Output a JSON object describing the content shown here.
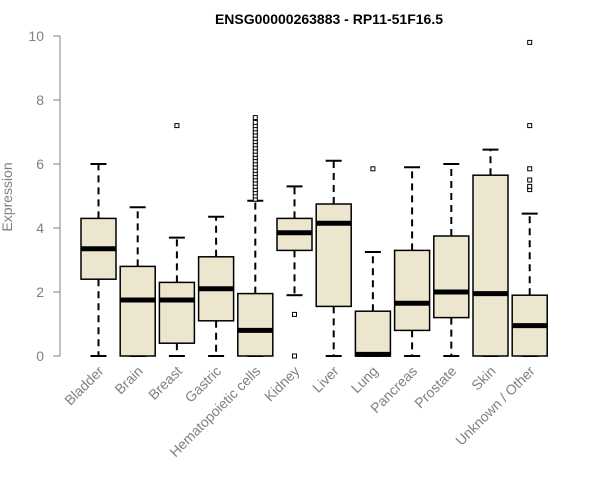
{
  "chart_data": {
    "type": "boxplot",
    "title": "ENSG00000263883 - RP11-51F16.5",
    "xlabel": "",
    "ylabel": "Expression",
    "ylim": [
      0,
      10
    ],
    "yticks": [
      0,
      2,
      4,
      6,
      8,
      10
    ],
    "grid": false,
    "colors": {
      "box_fill": "#ece6cf",
      "box_stroke": "#000000",
      "axis": "#808080",
      "text": "#808080"
    },
    "categories": [
      "Bladder",
      "Brain",
      "Breast",
      "Gastric",
      "Hematopoietic cells",
      "Kidney",
      "Liver",
      "Lung",
      "Pancreas",
      "Prostate",
      "Skin",
      "Unknown / Other"
    ],
    "boxes": [
      {
        "category": "Bladder",
        "whisker_low": 0,
        "q1": 2.4,
        "median": 3.35,
        "q3": 4.3,
        "whisker_high": 6.0,
        "outliers": []
      },
      {
        "category": "Brain",
        "whisker_low": 0,
        "q1": 0,
        "median": 1.75,
        "q3": 2.8,
        "whisker_high": 4.65,
        "outliers": []
      },
      {
        "category": "Breast",
        "whisker_low": 0,
        "q1": 0.4,
        "median": 1.75,
        "q3": 2.3,
        "whisker_high": 3.7,
        "outliers": [
          7.2
        ]
      },
      {
        "category": "Gastric",
        "whisker_low": 0,
        "q1": 1.1,
        "median": 2.1,
        "q3": 3.1,
        "whisker_high": 4.35,
        "outliers": []
      },
      {
        "category": "Hematopoietic cells",
        "whisker_low": 0,
        "q1": 0,
        "median": 0.8,
        "q3": 1.95,
        "whisker_high": 4.85,
        "outliers": [
          4.9,
          5.0,
          5.1,
          5.2,
          5.3,
          5.4,
          5.5,
          5.6,
          5.7,
          5.8,
          5.9,
          6.0,
          6.1,
          6.2,
          6.3,
          6.4,
          6.5,
          6.6,
          6.7,
          6.8,
          6.9,
          7.0,
          7.1,
          7.2,
          7.3,
          7.45
        ]
      },
      {
        "category": "Kidney",
        "whisker_low": 1.9,
        "q1": 3.3,
        "median": 3.85,
        "q3": 4.3,
        "whisker_high": 5.3,
        "outliers": [
          1.3,
          0
        ]
      },
      {
        "category": "Liver",
        "whisker_low": 0,
        "q1": 1.55,
        "median": 4.15,
        "q3": 4.75,
        "whisker_high": 6.1,
        "outliers": []
      },
      {
        "category": "Lung",
        "whisker_low": 0,
        "q1": 0,
        "median": 0.05,
        "q3": 1.4,
        "whisker_high": 3.25,
        "outliers": [
          5.85
        ]
      },
      {
        "category": "Pancreas",
        "whisker_low": 0,
        "q1": 0.8,
        "median": 1.65,
        "q3": 3.3,
        "whisker_high": 5.9,
        "outliers": []
      },
      {
        "category": "Prostate",
        "whisker_low": 0,
        "q1": 1.2,
        "median": 2.0,
        "q3": 3.75,
        "whisker_high": 6.0,
        "outliers": []
      },
      {
        "category": "Skin",
        "whisker_low": 0,
        "q1": 0,
        "median": 1.95,
        "q3": 5.65,
        "whisker_high": 6.45,
        "outliers": []
      },
      {
        "category": "Unknown / Other",
        "whisker_low": 0,
        "q1": 0,
        "median": 0.95,
        "q3": 1.9,
        "whisker_high": 4.45,
        "outliers": [
          5.2,
          5.3,
          5.5,
          5.85,
          7.2,
          9.8
        ]
      }
    ]
  }
}
